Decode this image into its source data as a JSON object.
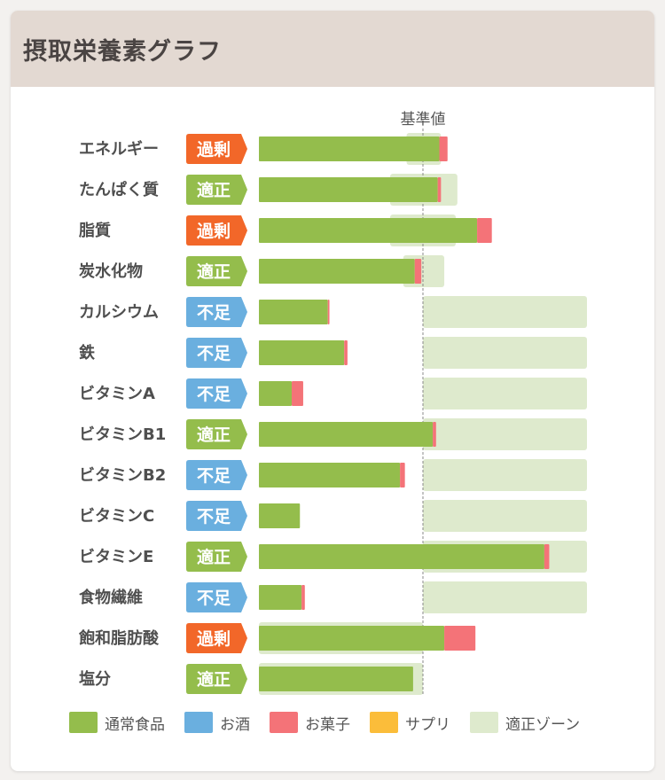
{
  "header": {
    "title": "摂取栄養素グラフ"
  },
  "colors": {
    "food": "#94bd4c",
    "alcohol": "#6aafdf",
    "sweets": "#f47378",
    "supplement": "#fbbd3a",
    "zone": "#deeacd",
    "status_excess": "#f26729",
    "status_ok": "#94bd4c",
    "status_low": "#6aafdf"
  },
  "chart_data": {
    "type": "bar",
    "stacked": true,
    "orientation": "horizontal",
    "reference_label": "基準値",
    "reference_value": 100,
    "x_unit": "% of 基準値",
    "xlim": [
      0,
      200
    ],
    "categories": [
      "エネルギー",
      "たんぱく質",
      "脂質",
      "炭水化物",
      "カルシウム",
      "鉄",
      "ビタミンA",
      "ビタミンB1",
      "ビタミンB2",
      "ビタミンC",
      "ビタミンE",
      "食物繊維",
      "飽和脂肪酸",
      "塩分"
    ],
    "status": [
      "過剰",
      "適正",
      "過剰",
      "適正",
      "不足",
      "不足",
      "不足",
      "適正",
      "不足",
      "不足",
      "適正",
      "不足",
      "過剰",
      "適正"
    ],
    "status_type": [
      "excess",
      "ok",
      "excess",
      "ok",
      "low",
      "low",
      "low",
      "ok",
      "low",
      "low",
      "ok",
      "low",
      "excess",
      "ok"
    ],
    "series": [
      {
        "name": "通常食品",
        "key": "food",
        "values": [
          110,
          109,
          133,
          95,
          42,
          52,
          20,
          106,
          86,
          25,
          174,
          26,
          113,
          94
        ]
      },
      {
        "name": "お酒",
        "key": "alcohol",
        "values": [
          0,
          0,
          0,
          0,
          0,
          0,
          0,
          0,
          0,
          0,
          0,
          0,
          0,
          0
        ]
      },
      {
        "name": "お菓子",
        "key": "sweets",
        "values": [
          5,
          2,
          9,
          4,
          1,
          2,
          7,
          2,
          3,
          0,
          3,
          2,
          19,
          0
        ]
      },
      {
        "name": "サプリ",
        "key": "supplement",
        "values": [
          0,
          0,
          0,
          0,
          0,
          0,
          0,
          0,
          0,
          0,
          0,
          0,
          0,
          0
        ]
      }
    ],
    "zones": [
      [
        90,
        111
      ],
      [
        80,
        121
      ],
      [
        80,
        120
      ],
      [
        88,
        113
      ],
      [
        100,
        200
      ],
      [
        100,
        200
      ],
      [
        100,
        200
      ],
      [
        100,
        200
      ],
      [
        100,
        200
      ],
      [
        100,
        200
      ],
      [
        100,
        200
      ],
      [
        100,
        200
      ],
      [
        0,
        100
      ],
      [
        0,
        100
      ]
    ],
    "legend": [
      {
        "name": "通常食品",
        "key": "food"
      },
      {
        "name": "お酒",
        "key": "alcohol"
      },
      {
        "name": "お菓子",
        "key": "sweets"
      },
      {
        "name": "サプリ",
        "key": "supplement"
      },
      {
        "name": "適正ゾーン",
        "key": "zone"
      }
    ],
    "legend_position": "bottom",
    "grid": false
  }
}
